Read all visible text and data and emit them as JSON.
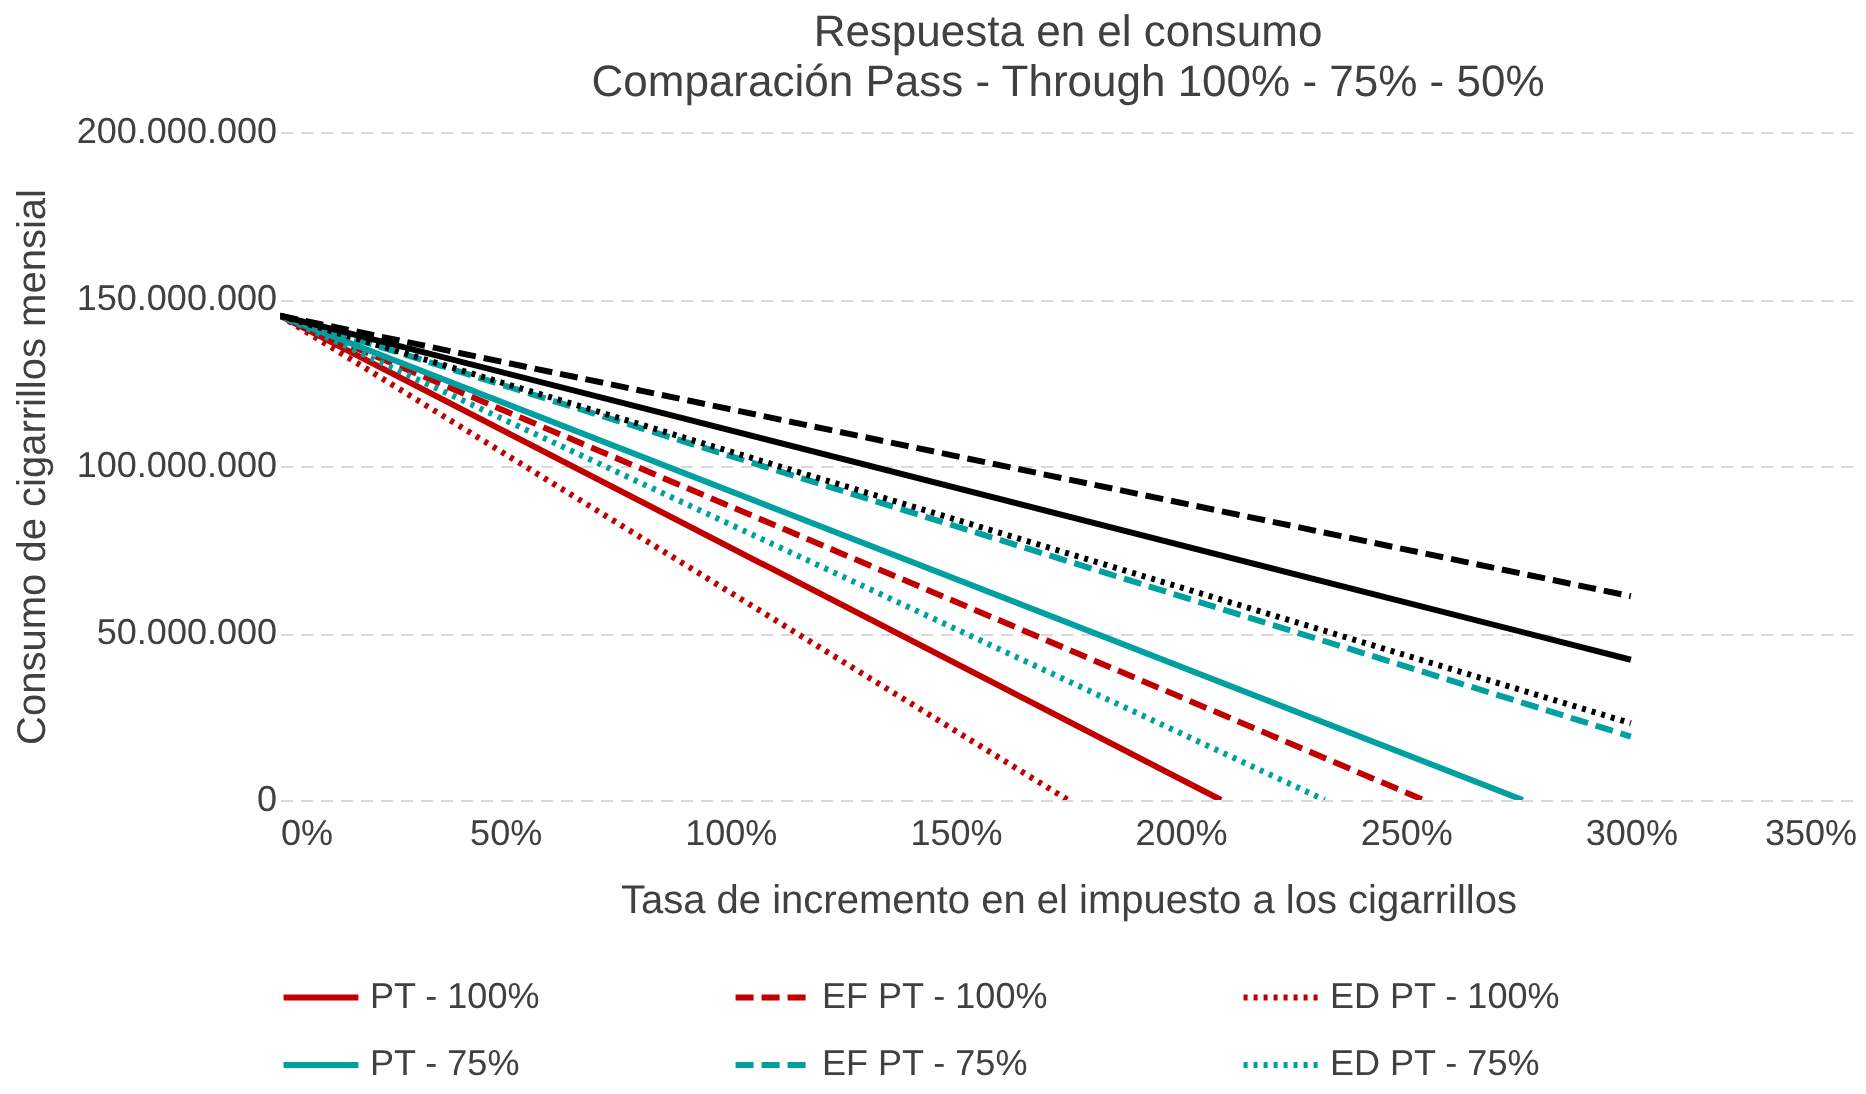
{
  "chart_data": {
    "type": "line",
    "title": "Respuesta en el consumo",
    "subtitle": "Comparación Pass - Through 100% - 75% - 50%",
    "xlabel": "Tasa de incremento en el impuesto a los cigarrillos",
    "ylabel": "Consumo de cigarrillos mensial",
    "series": [
      {
        "name": "PT - 100%",
        "color": "#c00000",
        "line_style": "solid",
        "x": [
          0,
          209
        ],
        "values": [
          145000000,
          0
        ]
      },
      {
        "name": "EF PT - 100%",
        "color": "#c00000",
        "line_style": "dashed",
        "x": [
          0,
          254
        ],
        "values": [
          145000000,
          0
        ]
      },
      {
        "name": "ED PT - 100%",
        "color": "#c00000",
        "line_style": "dotted",
        "x": [
          0,
          175
        ],
        "values": [
          145000000,
          0
        ]
      },
      {
        "name": "PT - 75%",
        "color": "#00a0a0",
        "line_style": "solid",
        "x": [
          0,
          276
        ],
        "values": [
          145000000,
          0
        ]
      },
      {
        "name": "EF PT - 75%",
        "color": "#00a0a0",
        "line_style": "dashed",
        "x": [
          0,
          300
        ],
        "values": [
          145000000,
          19000000
        ]
      },
      {
        "name": "ED PT - 75%",
        "color": "#00a0a0",
        "line_style": "dotted",
        "x": [
          0,
          232
        ],
        "values": [
          145000000,
          0
        ]
      },
      {
        "color": "#000000",
        "line_style": "solid",
        "x": [
          0,
          300
        ],
        "values": [
          145000000,
          42000000
        ]
      },
      {
        "color": "#000000",
        "line_style": "dashed",
        "x": [
          0,
          300
        ],
        "values": [
          145000000,
          61000000
        ]
      },
      {
        "color": "#000000",
        "line_style": "dotted",
        "x": [
          0,
          300
        ],
        "values": [
          145000000,
          23000000
        ]
      }
    ],
    "xlim": [
      0,
      350
    ],
    "xticks": [
      {
        "value": 0,
        "label": "0%"
      },
      {
        "value": 50,
        "label": "50%"
      },
      {
        "value": 100,
        "label": "100%"
      },
      {
        "value": 150,
        "label": "150%"
      },
      {
        "value": 200,
        "label": "200%"
      },
      {
        "value": 250,
        "label": "250%"
      },
      {
        "value": 300,
        "label": "300%"
      },
      {
        "value": 350,
        "label": "350%"
      }
    ],
    "ylim": [
      0,
      200000000
    ],
    "yticks": [
      {
        "value": 0,
        "label": "0"
      },
      {
        "value": 50000000,
        "label": "50.000.000"
      },
      {
        "value": 100000000,
        "label": "100.000.000"
      },
      {
        "value": 150000000,
        "label": "150.000.000"
      },
      {
        "value": 200000000,
        "label": "200.000.000"
      }
    ],
    "grid": "y",
    "legend": "bottom",
    "marker": "none"
  }
}
